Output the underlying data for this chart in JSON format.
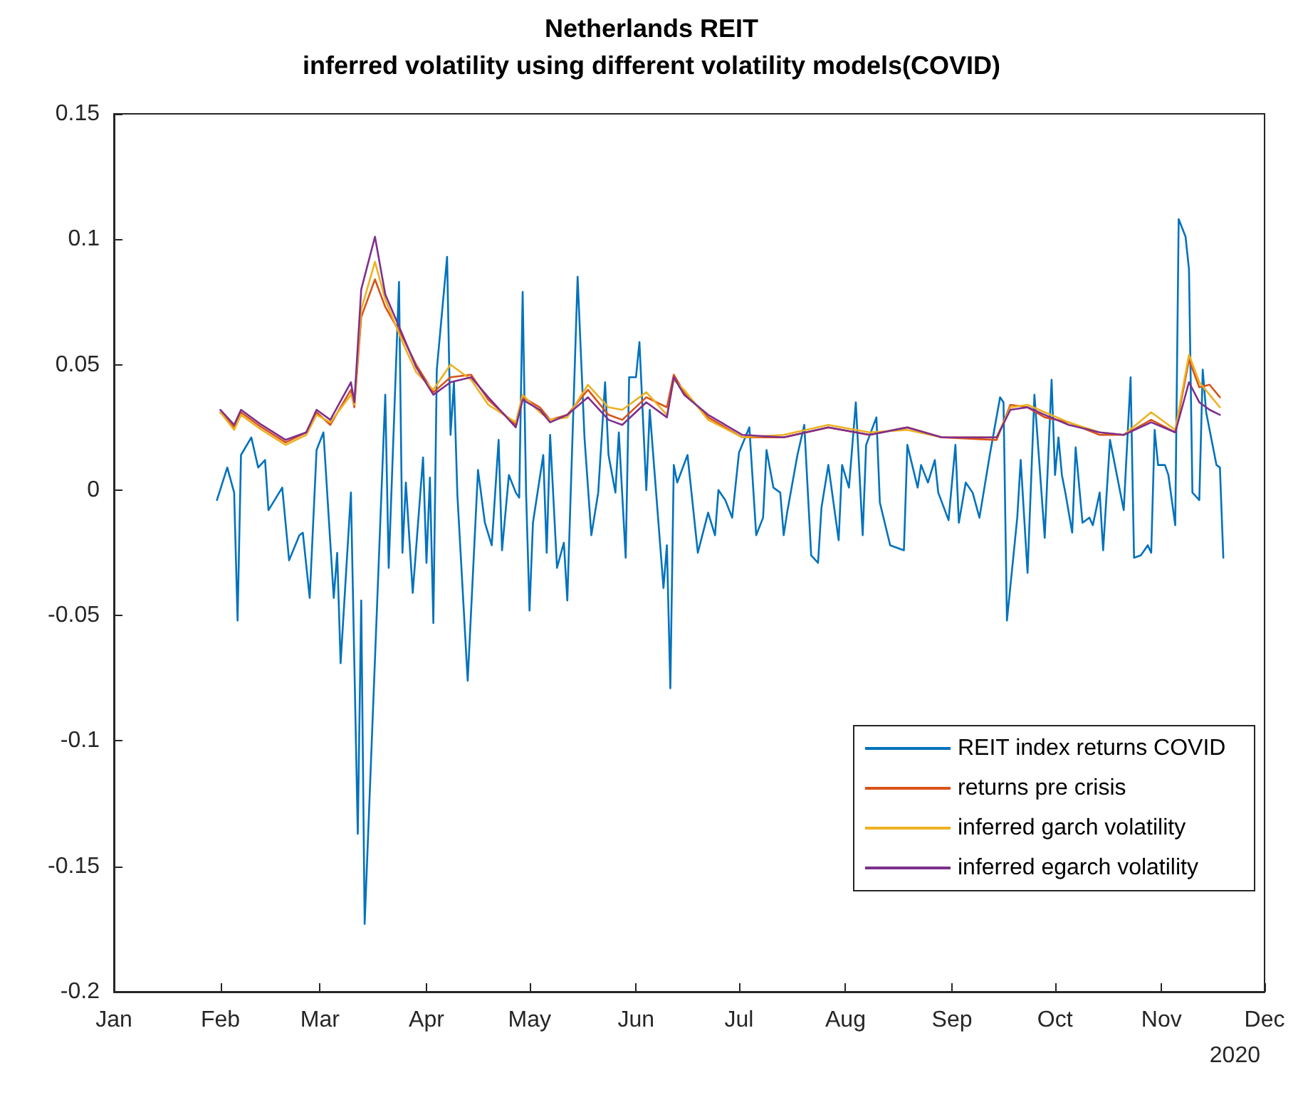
{
  "chart_data": {
    "type": "line",
    "title": "Netherlands REIT",
    "subtitle": "inferred volatility using different volatility models(COVID)",
    "xlim": [
      "2020-01-01",
      "2020-12-01"
    ],
    "xticks": [
      {
        "value": "2020-01-01",
        "label": "Jan"
      },
      {
        "value": "2020-02-01",
        "label": "Feb"
      },
      {
        "value": "2020-03-01",
        "label": "Mar"
      },
      {
        "value": "2020-04-01",
        "label": "Apr"
      },
      {
        "value": "2020-05-01",
        "label": "May"
      },
      {
        "value": "2020-06-01",
        "label": "Jun"
      },
      {
        "value": "2020-07-01",
        "label": "Jul"
      },
      {
        "value": "2020-08-01",
        "label": "Aug"
      },
      {
        "value": "2020-09-01",
        "label": "Sep"
      },
      {
        "value": "2020-10-01",
        "label": "Oct"
      },
      {
        "value": "2020-11-01",
        "label": "Nov"
      },
      {
        "value": "2020-12-01",
        "label": "Dec"
      }
    ],
    "ylim": [
      -0.2,
      0.15
    ],
    "yticks": [
      -0.2,
      -0.15,
      -0.1,
      -0.05,
      0,
      0.05,
      0.1,
      0.15
    ],
    "annotations": [
      "2020"
    ],
    "grid": false,
    "legend": "bottom right",
    "marker": "none",
    "line_style": "solid",
    "series": [
      {
        "name": "REIT index returns COVID",
        "color": "#0072bd",
        "x": [
          "2020-01-31",
          "2020-02-03",
          "2020-02-05",
          "2020-02-06",
          "2020-02-07",
          "2020-02-10",
          "2020-02-12",
          "2020-02-14",
          "2020-02-15",
          "2020-02-19",
          "2020-02-21",
          "2020-02-24",
          "2020-02-25",
          "2020-02-27",
          "2020-02-29",
          "2020-03-02",
          "2020-03-05",
          "2020-03-06",
          "2020-03-07",
          "2020-03-10",
          "2020-03-12",
          "2020-03-13",
          "2020-03-14",
          "2020-03-20",
          "2020-03-21",
          "2020-03-24",
          "2020-03-25",
          "2020-03-26",
          "2020-03-28",
          "2020-03-31",
          "2020-04-01",
          "2020-04-02",
          "2020-04-03",
          "2020-04-04",
          "2020-04-07",
          "2020-04-08",
          "2020-04-09",
          "2020-04-10",
          "2020-04-13",
          "2020-04-16",
          "2020-04-18",
          "2020-04-20",
          "2020-04-22",
          "2020-04-23",
          "2020-04-25",
          "2020-04-27",
          "2020-04-28",
          "2020-04-29",
          "2020-04-30",
          "2020-05-01",
          "2020-05-02",
          "2020-05-05",
          "2020-05-06",
          "2020-05-07",
          "2020-05-09",
          "2020-05-11",
          "2020-05-12",
          "2020-05-15",
          "2020-05-17",
          "2020-05-19",
          "2020-05-21",
          "2020-05-23",
          "2020-05-24",
          "2020-05-26",
          "2020-05-27",
          "2020-05-29",
          "2020-05-30",
          "2020-06-01",
          "2020-06-02",
          "2020-06-04",
          "2020-06-05",
          "2020-06-09",
          "2020-06-10",
          "2020-06-11",
          "2020-06-12",
          "2020-06-13",
          "2020-06-16",
          "2020-06-19",
          "2020-06-22",
          "2020-06-24",
          "2020-06-25",
          "2020-06-27",
          "2020-06-29",
          "2020-07-01",
          "2020-07-04",
          "2020-07-06",
          "2020-07-08",
          "2020-07-09",
          "2020-07-11",
          "2020-07-13",
          "2020-07-14",
          "2020-07-15",
          "2020-07-18",
          "2020-07-20",
          "2020-07-22",
          "2020-07-24",
          "2020-07-25",
          "2020-07-27",
          "2020-07-30",
          "2020-07-31",
          "2020-08-02",
          "2020-08-04",
          "2020-08-06",
          "2020-08-07",
          "2020-08-10",
          "2020-08-11",
          "2020-08-14",
          "2020-08-18",
          "2020-08-19",
          "2020-08-22",
          "2020-08-23",
          "2020-08-25",
          "2020-08-27",
          "2020-08-28",
          "2020-08-31",
          "2020-09-02",
          "2020-09-03",
          "2020-09-05",
          "2020-09-07",
          "2020-09-09",
          "2020-09-12",
          "2020-09-15",
          "2020-09-16",
          "2020-09-17",
          "2020-09-20",
          "2020-09-21",
          "2020-09-23",
          "2020-09-25",
          "2020-09-28",
          "2020-09-30",
          "2020-10-01",
          "2020-10-02",
          "2020-10-03",
          "2020-10-04",
          "2020-10-06",
          "2020-10-07",
          "2020-10-09",
          "2020-10-11",
          "2020-10-12",
          "2020-10-14",
          "2020-10-15",
          "2020-10-17",
          "2020-10-21",
          "2020-10-23",
          "2020-10-24",
          "2020-10-26",
          "2020-10-28",
          "2020-10-29",
          "2020-10-30",
          "2020-10-31",
          "2020-11-02",
          "2020-11-03",
          "2020-11-05",
          "2020-11-06",
          "2020-11-08",
          "2020-11-09",
          "2020-11-10",
          "2020-11-12",
          "2020-11-13",
          "2020-11-14",
          "2020-11-17",
          "2020-11-18",
          "2020-11-19"
        ],
        "values": [
          -0.004,
          0.009,
          -0.001,
          -0.052,
          0.014,
          0.021,
          0.009,
          0.012,
          -0.008,
          0.001,
          -0.028,
          -0.018,
          -0.017,
          -0.043,
          0.016,
          0.023,
          -0.043,
          -0.025,
          -0.069,
          -0.001,
          -0.137,
          -0.044,
          -0.173,
          0.038,
          -0.031,
          0.083,
          -0.025,
          0.003,
          -0.041,
          0.013,
          -0.029,
          0.005,
          -0.053,
          0.048,
          0.093,
          0.022,
          0.043,
          -0.002,
          -0.076,
          0.008,
          -0.013,
          -0.022,
          0.02,
          -0.024,
          0.006,
          -0.001,
          -0.003,
          0.079,
          -0.001,
          -0.048,
          -0.013,
          0.014,
          -0.025,
          0.022,
          -0.031,
          -0.021,
          -0.044,
          0.085,
          0.021,
          -0.018,
          -0.001,
          0.043,
          0.014,
          -0.001,
          0.023,
          -0.027,
          0.045,
          0.045,
          0.059,
          0.0,
          0.032,
          -0.039,
          -0.022,
          -0.079,
          0.01,
          0.003,
          0.014,
          -0.025,
          -0.009,
          -0.018,
          0.0,
          -0.004,
          -0.011,
          0.015,
          0.025,
          -0.018,
          -0.011,
          0.016,
          0.001,
          -0.001,
          -0.018,
          -0.009,
          0.014,
          0.026,
          -0.026,
          -0.029,
          -0.007,
          0.01,
          -0.02,
          0.01,
          0.001,
          0.035,
          -0.018,
          0.018,
          0.029,
          -0.005,
          -0.022,
          -0.024,
          0.018,
          0.001,
          0.01,
          0.003,
          0.012,
          -0.001,
          -0.012,
          0.018,
          -0.013,
          0.003,
          -0.001,
          -0.011,
          0.014,
          0.037,
          0.035,
          -0.052,
          -0.011,
          0.012,
          -0.033,
          0.038,
          -0.019,
          0.044,
          0.006,
          0.021,
          0.006,
          -0.001,
          -0.017,
          0.017,
          -0.013,
          -0.011,
          -0.014,
          -0.001,
          -0.024,
          0.02,
          -0.008,
          0.045,
          -0.027,
          -0.026,
          -0.022,
          -0.025,
          0.024,
          0.01,
          0.01,
          0.006,
          -0.014,
          0.108,
          0.101,
          0.088,
          -0.001,
          -0.004,
          0.048,
          0.031,
          0.01,
          0.009,
          -0.027
        ]
      },
      {
        "name": "returns pre crisis",
        "color": "#d95319",
        "x": [
          "2020-02-01",
          "2020-02-05",
          "2020-02-07",
          "2020-02-13",
          "2020-02-20",
          "2020-02-26",
          "2020-02-29",
          "2020-03-04",
          "2020-03-10",
          "2020-03-11",
          "2020-03-13",
          "2020-03-17",
          "2020-03-20",
          "2020-03-25",
          "2020-03-29",
          "2020-04-03",
          "2020-04-08",
          "2020-04-14",
          "2020-04-19",
          "2020-04-27",
          "2020-04-29",
          "2020-05-04",
          "2020-05-07",
          "2020-05-12",
          "2020-05-18",
          "2020-05-24",
          "2020-05-28",
          "2020-06-04",
          "2020-06-10",
          "2020-06-12",
          "2020-06-15",
          "2020-06-22",
          "2020-07-02",
          "2020-07-14",
          "2020-07-27",
          "2020-08-08",
          "2020-08-19",
          "2020-08-29",
          "2020-09-14",
          "2020-09-18",
          "2020-09-23",
          "2020-09-28",
          "2020-10-05",
          "2020-10-14",
          "2020-10-21",
          "2020-10-29",
          "2020-11-05",
          "2020-11-09",
          "2020-11-12",
          "2020-11-15",
          "2020-11-18"
        ],
        "values": [
          0.031,
          0.025,
          0.031,
          0.025,
          0.019,
          0.023,
          0.031,
          0.026,
          0.04,
          0.033,
          0.069,
          0.084,
          0.073,
          0.061,
          0.05,
          0.039,
          0.045,
          0.046,
          0.036,
          0.026,
          0.037,
          0.033,
          0.028,
          0.03,
          0.04,
          0.03,
          0.028,
          0.037,
          0.033,
          0.046,
          0.039,
          0.029,
          0.021,
          0.021,
          0.025,
          0.022,
          0.025,
          0.021,
          0.02,
          0.034,
          0.033,
          0.029,
          0.027,
          0.022,
          0.022,
          0.028,
          0.023,
          0.052,
          0.041,
          0.042,
          0.037
        ]
      },
      {
        "name": "inferred garch volatility",
        "color": "#edb120",
        "x": [
          "2020-02-01",
          "2020-02-05",
          "2020-02-07",
          "2020-02-13",
          "2020-02-20",
          "2020-02-26",
          "2020-02-29",
          "2020-03-04",
          "2020-03-10",
          "2020-03-11",
          "2020-03-13",
          "2020-03-17",
          "2020-03-20",
          "2020-03-25",
          "2020-03-29",
          "2020-04-03",
          "2020-04-08",
          "2020-04-14",
          "2020-04-19",
          "2020-04-27",
          "2020-04-29",
          "2020-05-04",
          "2020-05-07",
          "2020-05-12",
          "2020-05-18",
          "2020-05-24",
          "2020-05-28",
          "2020-06-04",
          "2020-06-10",
          "2020-06-12",
          "2020-06-15",
          "2020-06-22",
          "2020-07-02",
          "2020-07-14",
          "2020-07-27",
          "2020-08-08",
          "2020-08-19",
          "2020-08-29",
          "2020-09-14",
          "2020-09-18",
          "2020-09-23",
          "2020-09-28",
          "2020-10-05",
          "2020-10-14",
          "2020-10-21",
          "2020-10-29",
          "2020-11-05",
          "2020-11-09",
          "2020-11-12",
          "2020-11-15",
          "2020-11-18"
        ],
        "values": [
          0.031,
          0.024,
          0.03,
          0.024,
          0.018,
          0.022,
          0.03,
          0.027,
          0.038,
          0.034,
          0.072,
          0.091,
          0.076,
          0.059,
          0.047,
          0.04,
          0.05,
          0.044,
          0.034,
          0.027,
          0.038,
          0.031,
          0.028,
          0.029,
          0.042,
          0.033,
          0.032,
          0.039,
          0.03,
          0.044,
          0.04,
          0.028,
          0.021,
          0.022,
          0.026,
          0.023,
          0.024,
          0.021,
          0.021,
          0.033,
          0.034,
          0.031,
          0.027,
          0.023,
          0.022,
          0.031,
          0.024,
          0.054,
          0.043,
          0.038,
          0.033
        ]
      },
      {
        "name": "inferred egarch volatility",
        "color": "#7e2f8e",
        "x": [
          "2020-02-01",
          "2020-02-05",
          "2020-02-07",
          "2020-02-13",
          "2020-02-20",
          "2020-02-26",
          "2020-02-29",
          "2020-03-04",
          "2020-03-10",
          "2020-03-11",
          "2020-03-13",
          "2020-03-17",
          "2020-03-20",
          "2020-03-25",
          "2020-03-29",
          "2020-04-03",
          "2020-04-08",
          "2020-04-14",
          "2020-04-19",
          "2020-04-27",
          "2020-04-29",
          "2020-05-04",
          "2020-05-07",
          "2020-05-12",
          "2020-05-18",
          "2020-05-24",
          "2020-05-28",
          "2020-06-04",
          "2020-06-10",
          "2020-06-12",
          "2020-06-15",
          "2020-06-22",
          "2020-07-02",
          "2020-07-14",
          "2020-07-27",
          "2020-08-08",
          "2020-08-19",
          "2020-08-29",
          "2020-09-14",
          "2020-09-18",
          "2020-09-23",
          "2020-09-28",
          "2020-10-05",
          "2020-10-14",
          "2020-10-21",
          "2020-10-29",
          "2020-11-05",
          "2020-11-09",
          "2020-11-12",
          "2020-11-15",
          "2020-11-18"
        ],
        "values": [
          0.032,
          0.026,
          0.032,
          0.026,
          0.02,
          0.023,
          0.032,
          0.028,
          0.043,
          0.035,
          0.08,
          0.101,
          0.078,
          0.062,
          0.049,
          0.038,
          0.043,
          0.045,
          0.037,
          0.025,
          0.036,
          0.032,
          0.027,
          0.03,
          0.037,
          0.028,
          0.026,
          0.035,
          0.029,
          0.045,
          0.038,
          0.03,
          0.022,
          0.021,
          0.025,
          0.022,
          0.025,
          0.021,
          0.021,
          0.032,
          0.033,
          0.03,
          0.026,
          0.023,
          0.022,
          0.027,
          0.023,
          0.043,
          0.035,
          0.032,
          0.03
        ]
      }
    ]
  }
}
